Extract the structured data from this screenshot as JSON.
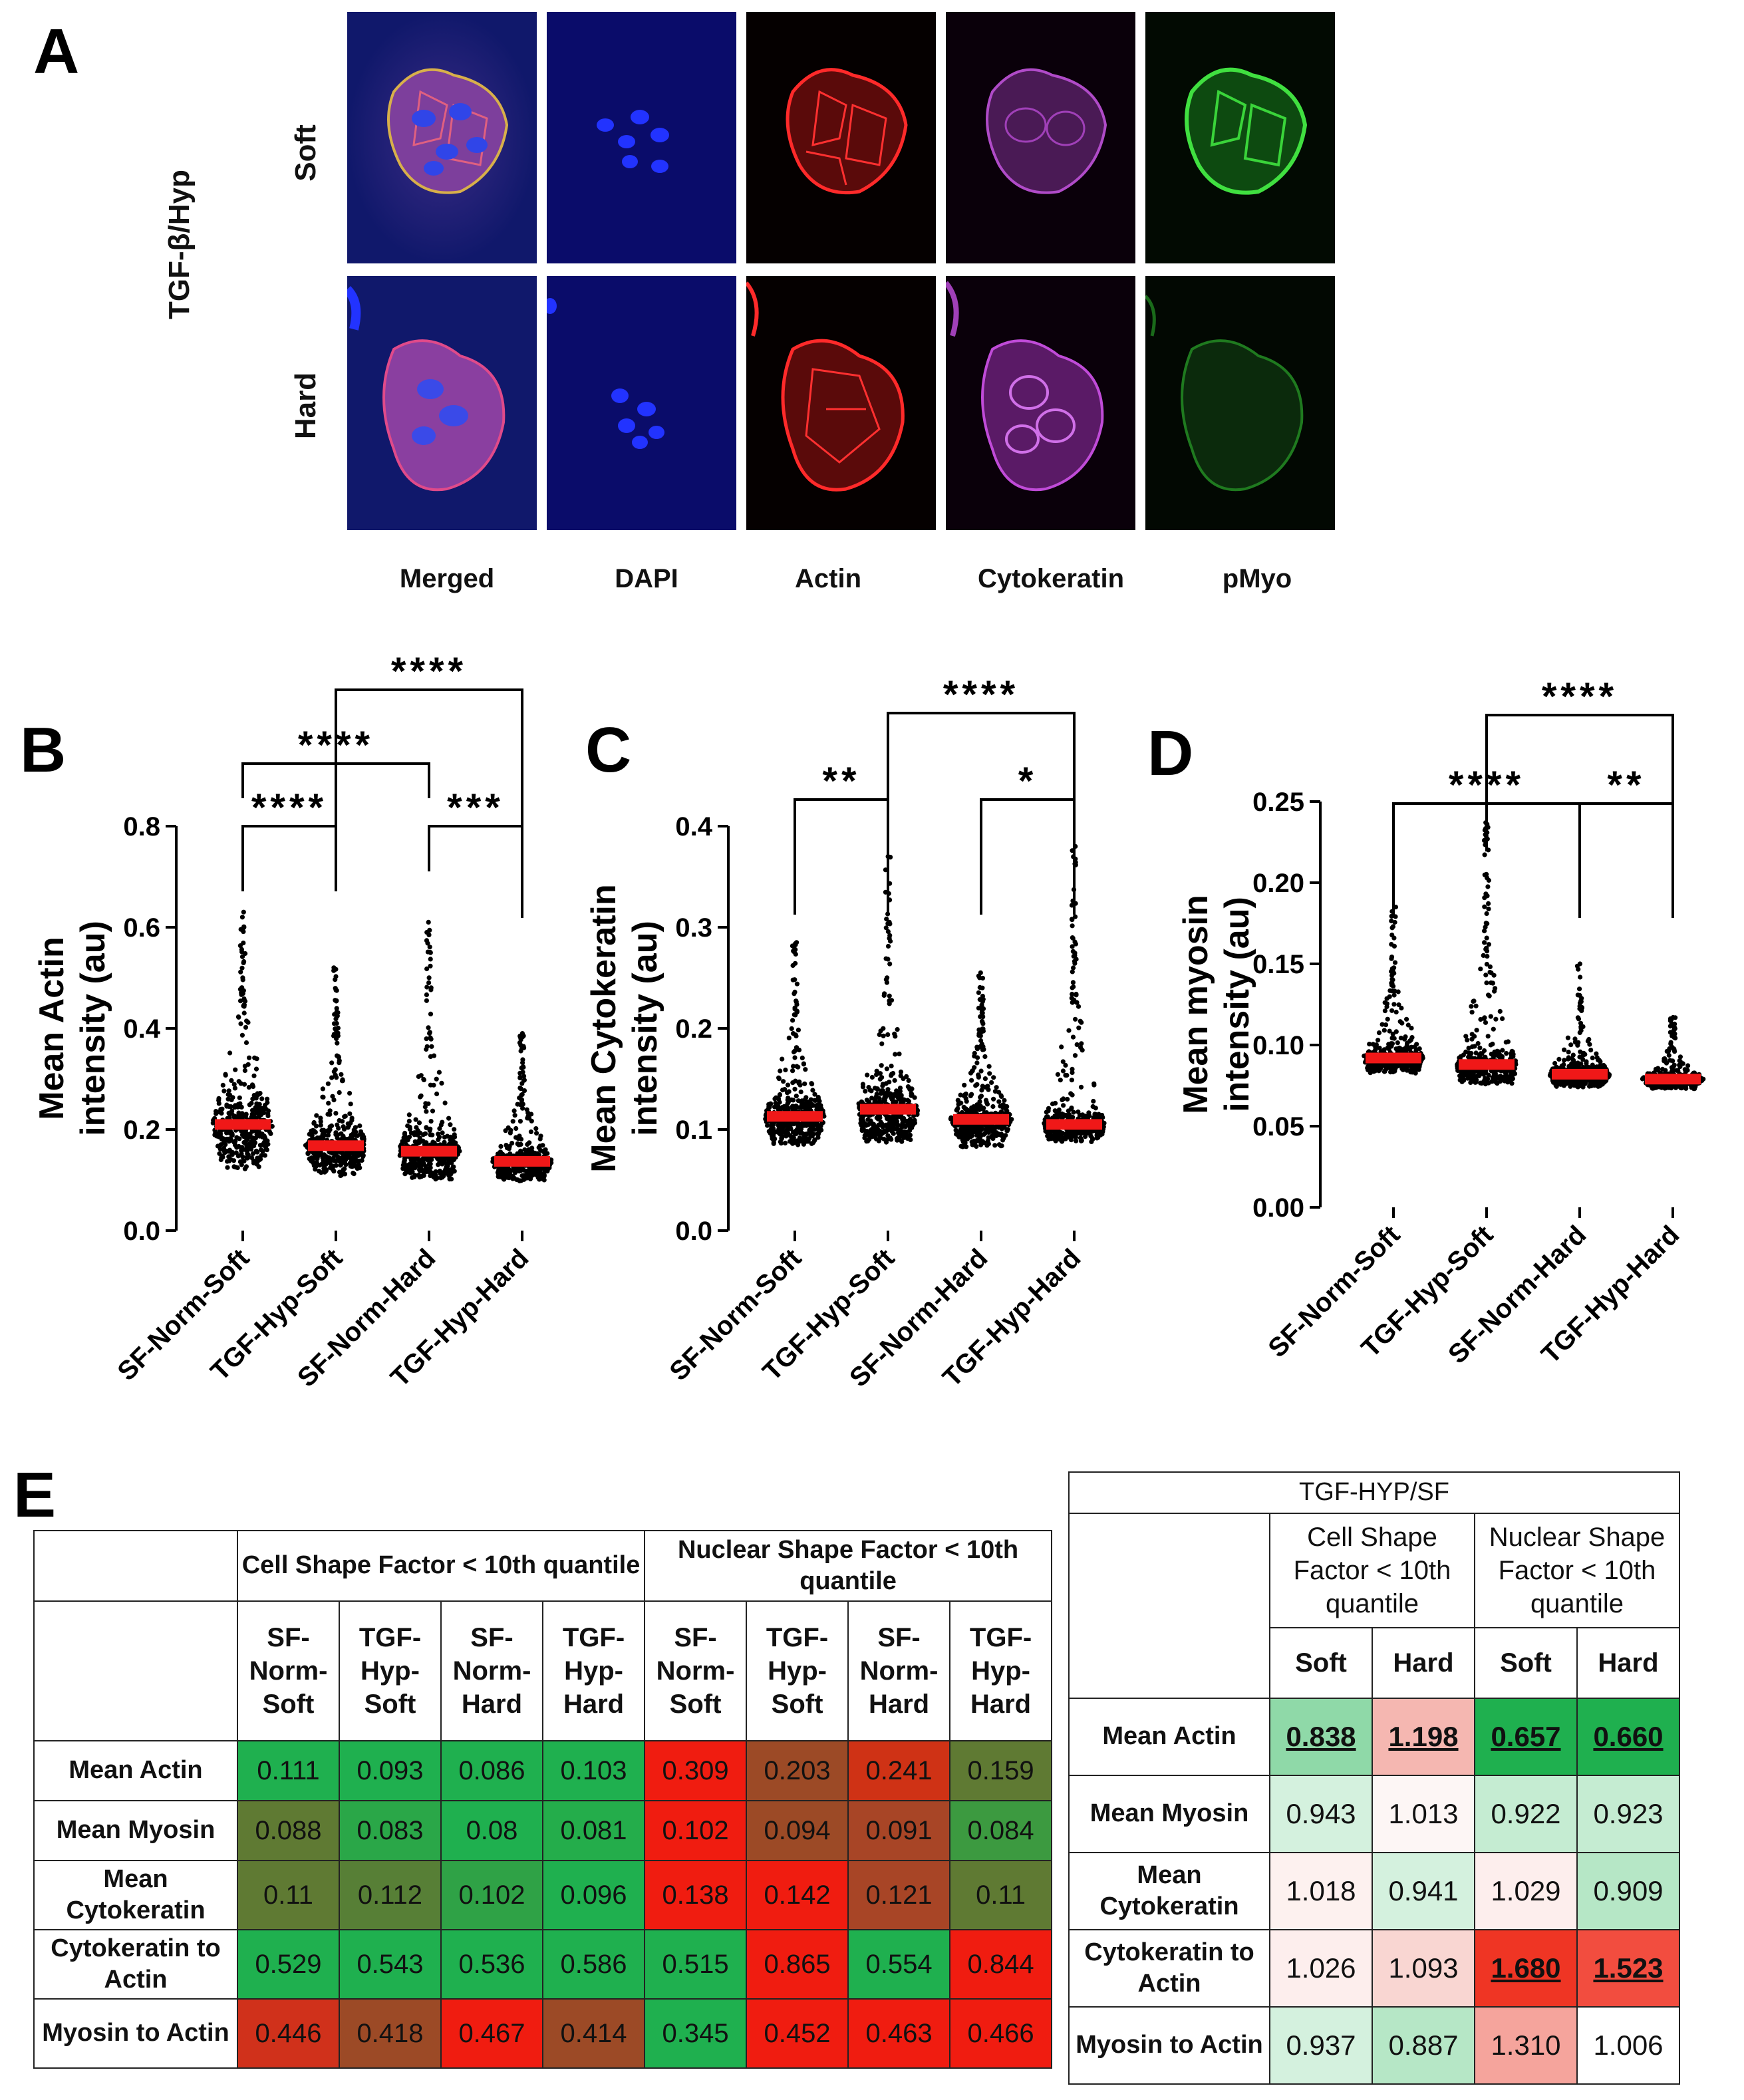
{
  "panels": {
    "A": "A",
    "B": "B",
    "C": "C",
    "D": "D",
    "E": "E"
  },
  "panelA": {
    "group_label": "TGF-β/Hyp",
    "rows": [
      "Soft",
      "Hard"
    ],
    "columns": [
      "Merged",
      "DAPI",
      "Actin",
      "Cytokeratin",
      "pMyo"
    ]
  },
  "chart_data": [
    {
      "type": "scatter",
      "id": "B",
      "ylabel": "Mean Actin intensity (au)",
      "ylabel_lines": [
        "Mean Actin",
        "intensity (au)"
      ],
      "categories": [
        "SF-Norm-Soft",
        "TGF-Hyp-Soft",
        "SF-Norm-Hard",
        "TGF-Hyp-Hard"
      ],
      "means": [
        0.21,
        0.168,
        0.157,
        0.137
      ],
      "mins": [
        0.08,
        0.08,
        0.075,
        0.08
      ],
      "maxs": [
        0.63,
        0.52,
        0.61,
        0.39
      ],
      "ylim": [
        0,
        0.8
      ],
      "yticks": [
        "0.0",
        "0.2",
        "0.4",
        "0.6",
        "0.8"
      ],
      "significance": [
        {
          "pair": [
            0,
            1
          ],
          "label": "****"
        },
        {
          "pair": [
            2,
            3
          ],
          "label": "***"
        },
        {
          "pair": [
            0,
            2
          ],
          "label": "****"
        },
        {
          "pair": [
            1,
            3
          ],
          "label": "****"
        }
      ]
    },
    {
      "type": "scatter",
      "id": "C",
      "ylabel": "Mean Cytokeratin intensity (au)",
      "ylabel_lines": [
        "Mean Cytokeratin",
        "intensity (au)"
      ],
      "categories": [
        "SF-Norm-Soft",
        "TGF-Hyp-Soft",
        "SF-Norm-Hard",
        "TGF-Hyp-Hard"
      ],
      "means": [
        0.113,
        0.12,
        0.11,
        0.105
      ],
      "mins": [
        0.07,
        0.07,
        0.07,
        0.08
      ],
      "maxs": [
        0.285,
        0.37,
        0.255,
        0.38
      ],
      "ylim": [
        0,
        0.4
      ],
      "yticks": [
        "0.0",
        "0.1",
        "0.2",
        "0.3",
        "0.4"
      ],
      "significance": [
        {
          "pair": [
            0,
            1
          ],
          "label": "**"
        },
        {
          "pair": [
            2,
            3
          ],
          "label": "*"
        },
        {
          "pair": [
            1,
            3
          ],
          "label": "****"
        }
      ]
    },
    {
      "type": "scatter",
      "id": "D",
      "ylabel": "Mean myosin intensity (au)",
      "ylabel_lines": [
        "Mean myosin",
        "intensity (au)"
      ],
      "categories": [
        "SF-Norm-Soft",
        "TGF-Hyp-Soft",
        "SF-Norm-Hard",
        "TGF-Hyp-Hard"
      ],
      "means": [
        0.092,
        0.088,
        0.082,
        0.079
      ],
      "mins": [
        0.078,
        0.07,
        0.07,
        0.07
      ],
      "maxs": [
        0.185,
        0.237,
        0.15,
        0.117
      ],
      "ylim": [
        0,
        0.25
      ],
      "yticks": [
        "0.00",
        "0.05",
        "0.10",
        "0.15",
        "0.20",
        "0.25"
      ],
      "significance": [
        {
          "pair": [
            0,
            2
          ],
          "label": "****"
        },
        {
          "pair": [
            2,
            3
          ],
          "label": "**"
        },
        {
          "pair": [
            1,
            3
          ],
          "label": "****"
        }
      ]
    },
    {
      "type": "table",
      "id": "E-left",
      "group_headers": [
        "Cell Shape Factor < 10th quantile",
        "Nuclear Shape Factor < 10th quantile"
      ],
      "group_header_sup": "th",
      "columns": [
        [
          "SF-",
          "Norm-",
          "Soft"
        ],
        [
          "TGF-",
          "Hyp-",
          "Soft"
        ],
        [
          "SF-",
          "Norm-",
          "Hard"
        ],
        [
          "TGF-",
          "Hyp-",
          "Hard"
        ],
        [
          "SF-",
          "Norm-",
          "Soft"
        ],
        [
          "TGF-",
          "Hyp-",
          "Soft"
        ],
        [
          "SF-",
          "Norm-",
          "Hard"
        ],
        [
          "TGF-",
          "Hyp-",
          "Hard"
        ]
      ],
      "rows": [
        {
          "label": "Mean Actin",
          "values": [
            "0.111",
            "0.093",
            "0.086",
            "0.103",
            "0.309",
            "0.203",
            "0.241",
            "0.159"
          ]
        },
        {
          "label": "Mean Myosin",
          "values": [
            "0.088",
            "0.083",
            "0.08",
            "0.081",
            "0.102",
            "0.094",
            "0.091",
            "0.084"
          ]
        },
        {
          "label": "Mean Cytokeratin",
          "values": [
            "0.11",
            "0.112",
            "0.102",
            "0.096",
            "0.138",
            "0.142",
            "0.121",
            "0.11"
          ]
        },
        {
          "label": "Cytokeratin to Actin",
          "values": [
            "0.529",
            "0.543",
            "0.536",
            "0.586",
            "0.515",
            "0.865",
            "0.554",
            "0.844"
          ]
        },
        {
          "label": "Myosin to Actin",
          "values": [
            "0.446",
            "0.418",
            "0.467",
            "0.414",
            "0.345",
            "0.452",
            "0.463",
            "0.466"
          ]
        }
      ],
      "cell_colors": [
        [
          "#1fb04f",
          "#1fb04f",
          "#1fb04f",
          "#1fb04f",
          "#f01c10",
          "#9c4a26",
          "#cf3215",
          "#5f7a33"
        ],
        [
          "#5f7a33",
          "#2aa748",
          "#1fb04f",
          "#24ad4b",
          "#f01c10",
          "#9c4a26",
          "#a84526",
          "#3c9a40"
        ],
        [
          "#5f7a33",
          "#577f36",
          "#2fa246",
          "#1fb04f",
          "#f01c10",
          "#f01c10",
          "#a84526",
          "#5f7a33"
        ],
        [
          "#1fb04f",
          "#1fb04f",
          "#1fb04f",
          "#1fb04f",
          "#1fb04f",
          "#f01c10",
          "#1fb04f",
          "#f01c10"
        ],
        [
          "#d0311b",
          "#9c4a26",
          "#f01c10",
          "#9c4a26",
          "#1fb04f",
          "#f01c10",
          "#f01c10",
          "#f01c10"
        ]
      ]
    },
    {
      "type": "table",
      "id": "E-right",
      "title": "TGF-HYP/SF",
      "group_headers": [
        "Cell Shape Factor < 10th quantile",
        "Nuclear Shape Factor < 10th quantile"
      ],
      "columns": [
        "Soft",
        "Hard",
        "Soft",
        "Hard"
      ],
      "rows": [
        {
          "label": "Mean Actin",
          "values": [
            "0.838",
            "1.198",
            "0.657",
            "0.660"
          ],
          "underline": [
            true,
            true,
            true,
            true
          ]
        },
        {
          "label": "Mean Myosin",
          "values": [
            "0.943",
            "1.013",
            "0.922",
            "0.923"
          ],
          "underline": [
            false,
            false,
            false,
            false
          ]
        },
        {
          "label": "Mean Cytokeratin",
          "values": [
            "1.018",
            "0.941",
            "1.029",
            "0.909"
          ],
          "underline": [
            false,
            false,
            false,
            false
          ]
        },
        {
          "label": "Cytokeratin to Actin",
          "values": [
            "1.026",
            "1.093",
            "1.680",
            "1.523"
          ],
          "underline": [
            false,
            false,
            true,
            true
          ]
        },
        {
          "label": "Myosin to Actin",
          "values": [
            "0.937",
            "0.887",
            "1.310",
            "1.006"
          ],
          "underline": [
            false,
            false,
            false,
            false
          ]
        }
      ],
      "cell_colors": [
        [
          "#8fd9a8",
          "#f5b7b1",
          "#1fb04f",
          "#1fb04f"
        ],
        [
          "#d4f1de",
          "#fdf6f5",
          "#c5ecd2",
          "#c5ecd2"
        ],
        [
          "#fdf1ef",
          "#d4f1de",
          "#fdeeed",
          "#b6e7c6"
        ],
        [
          "#fdeeed",
          "#f9d6d2",
          "#ef3524",
          "#f24d3f"
        ],
        [
          "#d4f1de",
          "#b6e7c6",
          "#f5a49c",
          "#ffffff"
        ]
      ]
    }
  ]
}
